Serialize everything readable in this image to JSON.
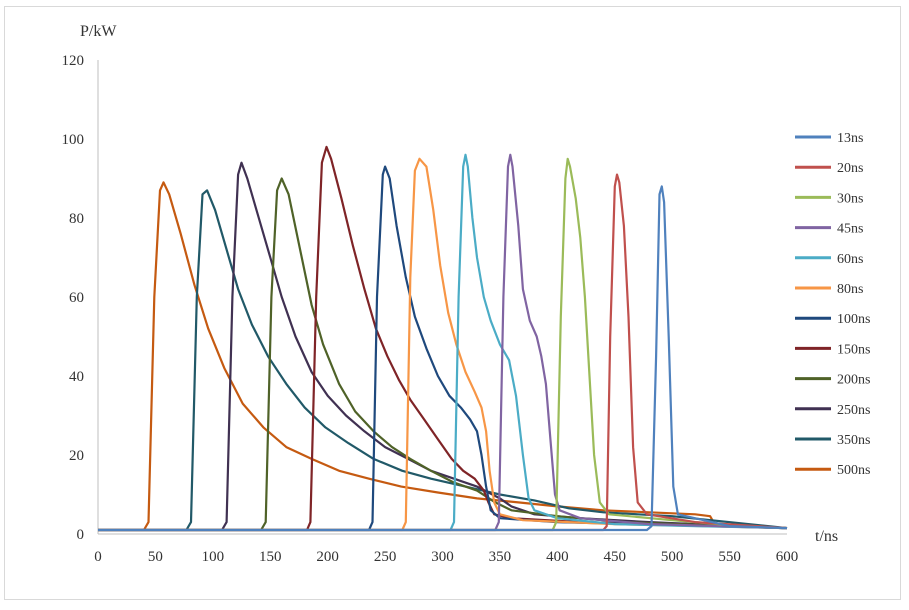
{
  "chart_data": {
    "type": "line",
    "title": "",
    "xlabel": "t/ns",
    "ylabel": "P/kW",
    "xlim": [
      0,
      600
    ],
    "ylim": [
      0,
      120
    ],
    "xticks": [
      "0",
      "50",
      "100",
      "150",
      "200",
      "250",
      "300",
      "350",
      "400",
      "450",
      "500",
      "550",
      "600"
    ],
    "yticks": [
      "0",
      "20",
      "40",
      "60",
      "80",
      "100",
      "120"
    ],
    "grid": false,
    "legend_position": "right",
    "series": [
      {
        "name": "13ns",
        "color": "#4f81bd",
        "points": [
          [
            0,
            1
          ],
          [
            478,
            1
          ],
          [
            482,
            2
          ],
          [
            486,
            45
          ],
          [
            489,
            86
          ],
          [
            491,
            88
          ],
          [
            493,
            84
          ],
          [
            497,
            50
          ],
          [
            501,
            12
          ],
          [
            505,
            5
          ],
          [
            550,
            2
          ],
          [
            600,
            1.5
          ]
        ]
      },
      {
        "name": "20ns",
        "color": "#c0504d",
        "points": [
          [
            0,
            1
          ],
          [
            440,
            1
          ],
          [
            443,
            2
          ],
          [
            446,
            50
          ],
          [
            450,
            88
          ],
          [
            452,
            91
          ],
          [
            454,
            89
          ],
          [
            458,
            78
          ],
          [
            462,
            55
          ],
          [
            466,
            22
          ],
          [
            470,
            8
          ],
          [
            478,
            5
          ],
          [
            520,
            3
          ],
          [
            600,
            1.5
          ]
        ]
      },
      {
        "name": "30ns",
        "color": "#9bbb59",
        "points": [
          [
            0,
            1
          ],
          [
            396,
            1
          ],
          [
            399,
            3
          ],
          [
            403,
            55
          ],
          [
            407,
            90
          ],
          [
            409,
            95
          ],
          [
            411,
            93
          ],
          [
            416,
            85
          ],
          [
            420,
            75
          ],
          [
            424,
            60
          ],
          [
            428,
            40
          ],
          [
            432,
            20
          ],
          [
            437,
            8
          ],
          [
            445,
            5
          ],
          [
            500,
            3.5
          ],
          [
            560,
            2
          ],
          [
            600,
            1.5
          ]
        ]
      },
      {
        "name": "45ns",
        "color": "#8064a2",
        "points": [
          [
            0,
            1
          ],
          [
            346,
            1
          ],
          [
            349,
            3
          ],
          [
            353,
            60
          ],
          [
            357,
            93
          ],
          [
            359,
            96
          ],
          [
            361,
            93
          ],
          [
            366,
            78
          ],
          [
            370,
            62
          ],
          [
            376,
            54
          ],
          [
            382,
            50
          ],
          [
            386,
            45
          ],
          [
            390,
            38
          ],
          [
            394,
            24
          ],
          [
            398,
            10
          ],
          [
            402,
            6
          ],
          [
            420,
            4
          ],
          [
            480,
            2.5
          ],
          [
            600,
            1.5
          ]
        ]
      },
      {
        "name": "60ns",
        "color": "#4bacc6",
        "points": [
          [
            0,
            1
          ],
          [
            307,
            1
          ],
          [
            310,
            3
          ],
          [
            314,
            60
          ],
          [
            318,
            93
          ],
          [
            320,
            96
          ],
          [
            322,
            93
          ],
          [
            326,
            80
          ],
          [
            330,
            70
          ],
          [
            336,
            60
          ],
          [
            342,
            54
          ],
          [
            350,
            48
          ],
          [
            358,
            44
          ],
          [
            364,
            35
          ],
          [
            370,
            20
          ],
          [
            375,
            9
          ],
          [
            380,
            6
          ],
          [
            400,
            4
          ],
          [
            450,
            2.5
          ],
          [
            520,
            2
          ],
          [
            600,
            1.5
          ]
        ]
      },
      {
        "name": "80ns",
        "color": "#f79646",
        "points": [
          [
            0,
            1
          ],
          [
            265,
            1
          ],
          [
            268,
            3
          ],
          [
            272,
            65
          ],
          [
            276,
            92
          ],
          [
            280,
            95
          ],
          [
            286,
            93
          ],
          [
            292,
            82
          ],
          [
            298,
            68
          ],
          [
            305,
            56
          ],
          [
            312,
            48
          ],
          [
            320,
            41
          ],
          [
            328,
            36
          ],
          [
            334,
            32
          ],
          [
            338,
            26
          ],
          [
            341,
            16
          ],
          [
            345,
            8
          ],
          [
            350,
            5
          ],
          [
            370,
            3.5
          ],
          [
            450,
            2.5
          ],
          [
            600,
            1.5
          ]
        ]
      },
      {
        "name": "100ns",
        "color": "#1f497d",
        "points": [
          [
            0,
            1
          ],
          [
            236,
            1
          ],
          [
            239,
            3
          ],
          [
            243,
            60
          ],
          [
            248,
            91
          ],
          [
            250,
            93
          ],
          [
            254,
            90
          ],
          [
            260,
            78
          ],
          [
            268,
            65
          ],
          [
            276,
            55
          ],
          [
            286,
            47
          ],
          [
            296,
            40
          ],
          [
            306,
            35
          ],
          [
            316,
            32
          ],
          [
            324,
            29
          ],
          [
            330,
            26
          ],
          [
            334,
            20
          ],
          [
            338,
            12
          ],
          [
            342,
            6
          ],
          [
            350,
            4
          ],
          [
            400,
            3
          ],
          [
            600,
            1.5
          ]
        ]
      },
      {
        "name": "150ns",
        "color": "#7f2427",
        "points": [
          [
            0,
            1
          ],
          [
            182,
            1
          ],
          [
            185,
            3
          ],
          [
            190,
            60
          ],
          [
            195,
            94
          ],
          [
            199,
            98
          ],
          [
            203,
            95
          ],
          [
            212,
            85
          ],
          [
            222,
            73
          ],
          [
            232,
            62
          ],
          [
            242,
            52
          ],
          [
            252,
            45
          ],
          [
            262,
            39
          ],
          [
            272,
            34
          ],
          [
            284,
            29
          ],
          [
            296,
            24
          ],
          [
            308,
            19
          ],
          [
            318,
            16
          ],
          [
            328,
            14
          ],
          [
            336,
            11
          ],
          [
            340,
            8
          ],
          [
            345,
            5
          ],
          [
            360,
            4
          ],
          [
            420,
            3
          ],
          [
            600,
            1.5
          ]
        ]
      },
      {
        "name": "200ns",
        "color": "#4f6228",
        "points": [
          [
            0,
            1
          ],
          [
            142,
            1
          ],
          [
            146,
            3
          ],
          [
            151,
            60
          ],
          [
            156,
            87
          ],
          [
            160,
            90
          ],
          [
            166,
            86
          ],
          [
            176,
            72
          ],
          [
            186,
            58
          ],
          [
            196,
            48
          ],
          [
            210,
            38
          ],
          [
            224,
            31
          ],
          [
            240,
            26
          ],
          [
            256,
            22
          ],
          [
            272,
            19
          ],
          [
            290,
            16
          ],
          [
            310,
            13
          ],
          [
            330,
            11
          ],
          [
            346,
            8
          ],
          [
            360,
            6
          ],
          [
            400,
            4.5
          ],
          [
            460,
            3
          ],
          [
            600,
            1.5
          ]
        ]
      },
      {
        "name": "250ns",
        "color": "#403152",
        "points": [
          [
            0,
            1
          ],
          [
            108,
            1
          ],
          [
            112,
            3
          ],
          [
            117,
            60
          ],
          [
            122,
            91
          ],
          [
            125,
            94
          ],
          [
            130,
            90
          ],
          [
            140,
            80
          ],
          [
            150,
            70
          ],
          [
            160,
            60
          ],
          [
            172,
            50
          ],
          [
            186,
            41
          ],
          [
            200,
            35
          ],
          [
            216,
            30
          ],
          [
            232,
            26
          ],
          [
            250,
            22
          ],
          [
            270,
            19
          ],
          [
            290,
            16
          ],
          [
            310,
            14
          ],
          [
            330,
            12
          ],
          [
            350,
            9
          ],
          [
            360,
            7
          ],
          [
            380,
            5
          ],
          [
            420,
            4
          ],
          [
            480,
            3
          ],
          [
            600,
            1.5
          ]
        ]
      },
      {
        "name": "350ns",
        "color": "#215968",
        "points": [
          [
            0,
            1
          ],
          [
            77,
            1
          ],
          [
            81,
            3
          ],
          [
            86,
            60
          ],
          [
            91,
            86
          ],
          [
            95,
            87
          ],
          [
            102,
            82
          ],
          [
            112,
            72
          ],
          [
            122,
            62
          ],
          [
            134,
            53
          ],
          [
            148,
            45
          ],
          [
            164,
            38
          ],
          [
            180,
            32
          ],
          [
            198,
            27
          ],
          [
            218,
            23
          ],
          [
            240,
            19
          ],
          [
            265,
            16
          ],
          [
            290,
            14
          ],
          [
            320,
            12
          ],
          [
            350,
            10
          ],
          [
            380,
            8.5
          ],
          [
            410,
            6.5
          ],
          [
            440,
            5.5
          ],
          [
            470,
            5
          ],
          [
            500,
            4.5
          ],
          [
            600,
            1.5
          ]
        ]
      },
      {
        "name": "500ns",
        "color": "#c55a11",
        "points": [
          [
            0,
            1
          ],
          [
            40,
            1
          ],
          [
            44,
            3
          ],
          [
            49,
            60
          ],
          [
            54,
            87
          ],
          [
            57,
            89
          ],
          [
            62,
            86
          ],
          [
            72,
            76
          ],
          [
            84,
            63
          ],
          [
            96,
            52
          ],
          [
            110,
            42
          ],
          [
            126,
            33
          ],
          [
            144,
            27
          ],
          [
            164,
            22
          ],
          [
            186,
            19
          ],
          [
            210,
            16
          ],
          [
            236,
            14
          ],
          [
            264,
            12
          ],
          [
            296,
            10.5
          ],
          [
            330,
            9
          ],
          [
            366,
            8
          ],
          [
            400,
            7
          ],
          [
            440,
            6
          ],
          [
            480,
            5.5
          ],
          [
            520,
            5
          ],
          [
            533,
            4.5
          ],
          [
            538,
            2
          ],
          [
            600,
            1.5
          ]
        ]
      }
    ]
  }
}
